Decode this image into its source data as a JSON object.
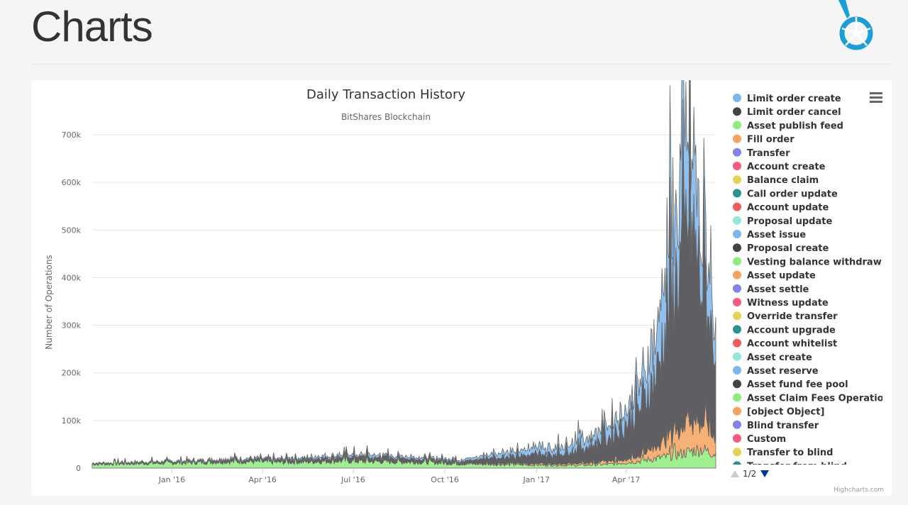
{
  "page": {
    "title": "Charts"
  },
  "colors": {
    "s0": "#7cb5ec",
    "s1": "#434348",
    "s2": "#90ed7d",
    "s3": "#f7a35c",
    "s4": "#8085e9",
    "s5": "#f15c80",
    "s6": "#e4d354",
    "s7": "#2b908f",
    "s8": "#f45b5b",
    "s9": "#91e8e1",
    "logo": "#1a9ed8"
  },
  "legend_pager": {
    "text": "1/2"
  },
  "credits": "Highcharts.com",
  "chart_data": {
    "type": "area",
    "stacked": true,
    "title": "Daily Transaction History",
    "subtitle": "BitShares Blockchain",
    "ylabel": "Number of Operations",
    "xlabel": "",
    "x_range": [
      "2015-10-13",
      "2017-06-30"
    ],
    "ylim": [
      0,
      700000
    ],
    "y_ticks": [
      0,
      100000,
      200000,
      300000,
      400000,
      500000,
      600000,
      700000
    ],
    "y_tick_labels": [
      "0",
      "100k",
      "200k",
      "300k",
      "400k",
      "500k",
      "600k",
      "700k"
    ],
    "x_ticks": [
      {
        "date": "2016-01-01",
        "label": "Jan '16"
      },
      {
        "date": "2016-04-01",
        "label": "Apr '16"
      },
      {
        "date": "2016-07-01",
        "label": "Jul '16"
      },
      {
        "date": "2016-10-01",
        "label": "Oct '16"
      },
      {
        "date": "2017-01-01",
        "label": "Jan '17"
      },
      {
        "date": "2017-04-01",
        "label": "Apr '17"
      }
    ],
    "grid": true,
    "legend_placement": "right",
    "legend": [
      "Limit order create",
      "Limit order cancel",
      "Asset publish feed",
      "Fill order",
      "Transfer",
      "Account create",
      "Balance claim",
      "Call order update",
      "Account update",
      "Proposal update",
      "Asset issue",
      "Proposal create",
      "Vesting balance withdraw",
      "Asset update",
      "Asset settle",
      "Witness update",
      "Override transfer",
      "Account upgrade",
      "Account whitelist",
      "Asset create",
      "Asset reserve",
      "Asset fund fee pool",
      "Asset Claim Fees Operation",
      "[object Object]",
      "Blind transfer",
      "Custom",
      "Transfer to blind",
      "Transfer from blind"
    ],
    "series": [
      {
        "name": "Asset publish feed",
        "points": [
          [
            "2015-10-15",
            8000
          ],
          [
            "2015-11-15",
            9000
          ],
          [
            "2015-12-15",
            10000
          ],
          [
            "2016-01-15",
            11000
          ],
          [
            "2016-02-15",
            13000
          ],
          [
            "2016-03-15",
            14000
          ],
          [
            "2016-04-15",
            12000
          ],
          [
            "2016-05-15",
            13000
          ],
          [
            "2016-06-15",
            15000
          ],
          [
            "2016-07-15",
            14000
          ],
          [
            "2016-08-15",
            13000
          ],
          [
            "2016-09-15",
            12000
          ],
          [
            "2016-10-15",
            9000
          ],
          [
            "2016-11-15",
            8000
          ],
          [
            "2016-12-15",
            7000
          ],
          [
            "2017-01-15",
            6000
          ],
          [
            "2017-02-15",
            6000
          ],
          [
            "2017-03-15",
            8000
          ],
          [
            "2017-04-15",
            15000
          ],
          [
            "2017-05-15",
            25000
          ],
          [
            "2017-06-15",
            40000
          ],
          [
            "2017-06-30",
            30000
          ]
        ]
      },
      {
        "name": "Fill order",
        "points": [
          [
            "2015-10-15",
            500
          ],
          [
            "2016-04-15",
            800
          ],
          [
            "2016-10-15",
            1500
          ],
          [
            "2017-01-15",
            3000
          ],
          [
            "2017-03-15",
            5000
          ],
          [
            "2017-04-15",
            12000
          ],
          [
            "2017-05-15",
            35000
          ],
          [
            "2017-06-01",
            70000
          ],
          [
            "2017-06-15",
            60000
          ],
          [
            "2017-06-30",
            40000
          ]
        ]
      },
      {
        "name": "Limit order cancel",
        "points": [
          [
            "2015-10-15",
            1000
          ],
          [
            "2016-01-15",
            2000
          ],
          [
            "2016-04-15",
            4000
          ],
          [
            "2016-07-15",
            8000
          ],
          [
            "2016-10-15",
            4000
          ],
          [
            "2016-12-01",
            15000
          ],
          [
            "2017-01-15",
            20000
          ],
          [
            "2017-02-15",
            30000
          ],
          [
            "2017-03-15",
            50000
          ],
          [
            "2017-04-15",
            100000
          ],
          [
            "2017-05-01",
            150000
          ],
          [
            "2017-05-15",
            280000
          ],
          [
            "2017-05-25",
            350000
          ],
          [
            "2017-06-05",
            420000
          ],
          [
            "2017-06-15",
            300000
          ],
          [
            "2017-06-30",
            180000
          ]
        ]
      },
      {
        "name": "Limit order create",
        "points": [
          [
            "2015-10-15",
            1000
          ],
          [
            "2016-01-15",
            2000
          ],
          [
            "2016-04-15",
            3000
          ],
          [
            "2016-07-15",
            5000
          ],
          [
            "2016-10-15",
            3000
          ],
          [
            "2016-12-01",
            10000
          ],
          [
            "2017-01-15",
            15000
          ],
          [
            "2017-02-15",
            20000
          ],
          [
            "2017-03-15",
            25000
          ],
          [
            "2017-04-15",
            50000
          ],
          [
            "2017-05-01",
            80000
          ],
          [
            "2017-05-15",
            150000
          ],
          [
            "2017-05-25",
            180000
          ],
          [
            "2017-06-05",
            180000
          ],
          [
            "2017-06-15",
            120000
          ],
          [
            "2017-06-30",
            80000
          ]
        ]
      }
    ]
  }
}
